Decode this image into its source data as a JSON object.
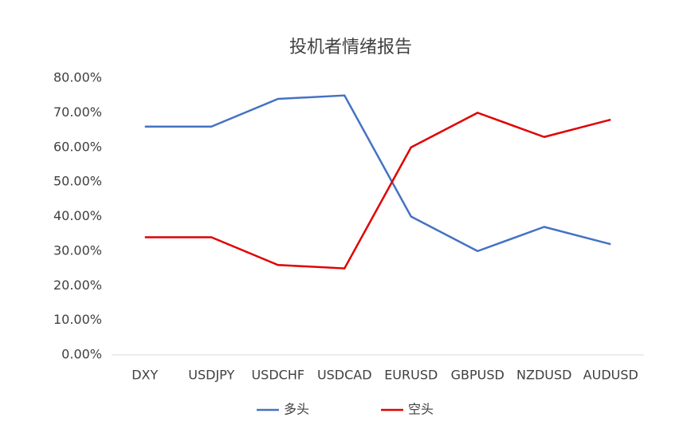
{
  "chart_data": {
    "type": "line",
    "title": "投机者情绪报告",
    "categories": [
      "DXY",
      "USDJPY",
      "USDCHF",
      "USDCAD",
      "EURUSD",
      "GBPUSD",
      "NZDUSD",
      "AUDUSD"
    ],
    "series": [
      {
        "name": "多头",
        "color": "#4472c4",
        "values": [
          66,
          66,
          74,
          75,
          40,
          30,
          37,
          32
        ]
      },
      {
        "name": "空头",
        "color": "#e00000",
        "values": [
          34,
          34,
          26,
          25,
          60,
          70,
          63,
          68
        ]
      }
    ],
    "ylim": [
      0,
      80
    ],
    "yticks": [
      {
        "value": 0,
        "label": "0.00%"
      },
      {
        "value": 10,
        "label": "10.00%"
      },
      {
        "value": 20,
        "label": "20.00%"
      },
      {
        "value": 30,
        "label": "30.00%"
      },
      {
        "value": 40,
        "label": "40.00%"
      },
      {
        "value": 50,
        "label": "50.00%"
      },
      {
        "value": 60,
        "label": "60.00%"
      },
      {
        "value": 70,
        "label": "70.00%"
      },
      {
        "value": 80,
        "label": "80.00%"
      }
    ],
    "grid": false,
    "legend": "bottom"
  }
}
